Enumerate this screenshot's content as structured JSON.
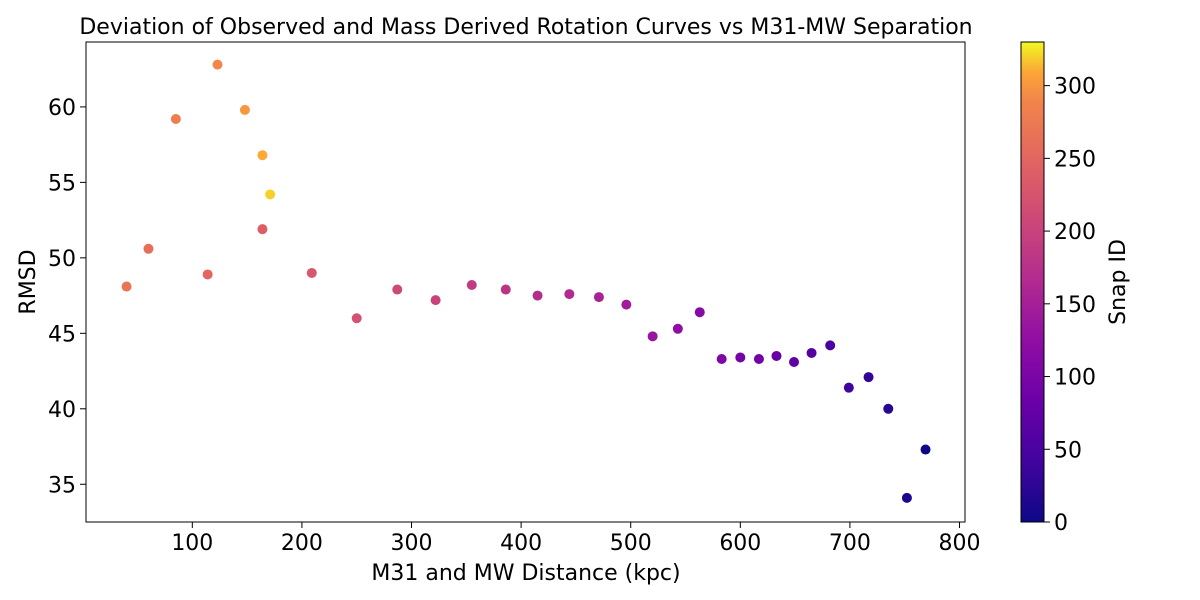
{
  "chart_data": {
    "type": "scatter",
    "title": "Deviation of Observed and Mass Derived Rotation Curves vs M31-MW Separation",
    "xlabel": "M31 and MW Distance (kpc)",
    "ylabel": "RMSD",
    "xlim": [
      3,
      805
    ],
    "ylim": [
      32.5,
      64.3
    ],
    "xticks": [
      100,
      200,
      300,
      400,
      500,
      600,
      700,
      800
    ],
    "xtick_labels": [
      "100",
      "200",
      "300",
      "400",
      "500",
      "600",
      "700",
      "800"
    ],
    "yticks": [
      35,
      40,
      45,
      50,
      55,
      60
    ],
    "ytick_labels": [
      "35",
      "40",
      "45",
      "50",
      "55",
      "60"
    ],
    "grid": false,
    "colormap": "plasma",
    "colorbar": {
      "label": "Snap ID",
      "range": [
        0,
        330
      ],
      "ticks": [
        0,
        50,
        100,
        150,
        200,
        250,
        300
      ],
      "tick_labels": [
        "0",
        "50",
        "100",
        "150",
        "200",
        "250",
        "300"
      ]
    },
    "points": [
      {
        "x": 769,
        "y": 37.3,
        "c": 0
      },
      {
        "x": 752,
        "y": 34.1,
        "c": 10
      },
      {
        "x": 735,
        "y": 40.0,
        "c": 20
      },
      {
        "x": 717,
        "y": 42.1,
        "c": 30
      },
      {
        "x": 699,
        "y": 41.4,
        "c": 40
      },
      {
        "x": 682,
        "y": 44.2,
        "c": 50
      },
      {
        "x": 665,
        "y": 43.7,
        "c": 60
      },
      {
        "x": 649,
        "y": 43.1,
        "c": 70
      },
      {
        "x": 633,
        "y": 43.5,
        "c": 80
      },
      {
        "x": 617,
        "y": 43.3,
        "c": 90
      },
      {
        "x": 600,
        "y": 43.4,
        "c": 95
      },
      {
        "x": 583,
        "y": 43.3,
        "c": 105
      },
      {
        "x": 563,
        "y": 46.4,
        "c": 115
      },
      {
        "x": 543,
        "y": 45.3,
        "c": 125
      },
      {
        "x": 520,
        "y": 44.8,
        "c": 135
      },
      {
        "x": 496,
        "y": 46.9,
        "c": 145
      },
      {
        "x": 471,
        "y": 47.4,
        "c": 155
      },
      {
        "x": 444,
        "y": 47.6,
        "c": 165
      },
      {
        "x": 415,
        "y": 47.5,
        "c": 170
      },
      {
        "x": 386,
        "y": 47.9,
        "c": 180
      },
      {
        "x": 355,
        "y": 48.2,
        "c": 190
      },
      {
        "x": 322,
        "y": 47.2,
        "c": 200
      },
      {
        "x": 287,
        "y": 47.9,
        "c": 210
      },
      {
        "x": 250,
        "y": 46.0,
        "c": 220
      },
      {
        "x": 209,
        "y": 49.0,
        "c": 230
      },
      {
        "x": 164,
        "y": 51.9,
        "c": 240
      },
      {
        "x": 114,
        "y": 48.9,
        "c": 250
      },
      {
        "x": 60,
        "y": 50.6,
        "c": 260
      },
      {
        "x": 40,
        "y": 48.1,
        "c": 270
      },
      {
        "x": 85,
        "y": 59.2,
        "c": 280
      },
      {
        "x": 123,
        "y": 62.8,
        "c": 290
      },
      {
        "x": 148,
        "y": 59.8,
        "c": 300
      },
      {
        "x": 164,
        "y": 56.8,
        "c": 310
      },
      {
        "x": 171,
        "y": 54.2,
        "c": 320
      }
    ]
  }
}
